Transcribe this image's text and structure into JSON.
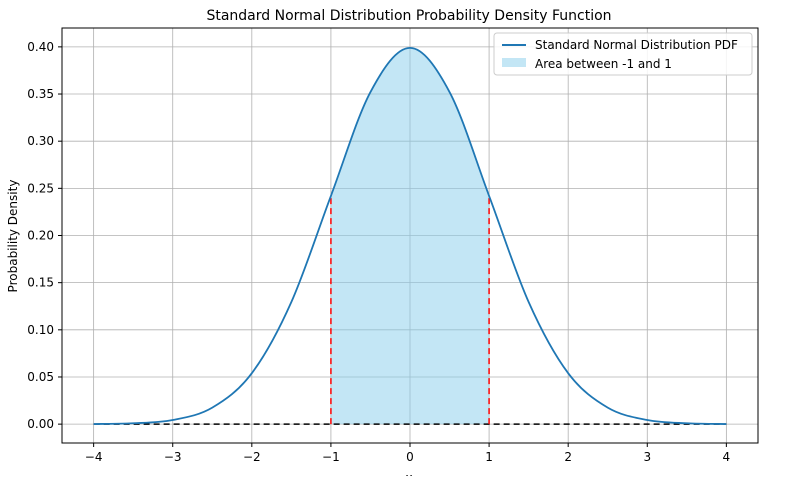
{
  "chart_data": {
    "type": "line",
    "title": "Standard Normal Distribution Probability Density Function",
    "xlabel": "x",
    "ylabel": "Probability Density",
    "xlim": [
      -4.4,
      4.4
    ],
    "ylim": [
      -0.02,
      0.42
    ],
    "x_ticks": [
      -4,
      -3,
      -2,
      -1,
      0,
      1,
      2,
      3,
      4
    ],
    "x_tick_labels": [
      "−4",
      "−3",
      "−2",
      "−1",
      "0",
      "1",
      "2",
      "3",
      "4"
    ],
    "y_ticks": [
      0.0,
      0.05,
      0.1,
      0.15,
      0.2,
      0.25,
      0.3,
      0.35,
      0.4
    ],
    "y_tick_labels": [
      "0.00",
      "0.05",
      "0.10",
      "0.15",
      "0.20",
      "0.25",
      "0.30",
      "0.35",
      "0.40"
    ],
    "grid": true,
    "legend_position": "top-right",
    "series": [
      {
        "name": "Standard Normal Distribution PDF",
        "color": "#1f77b4",
        "x": [
          -4.0,
          -3.5,
          -3.0,
          -2.5,
          -2.0,
          -1.5,
          -1.0,
          -0.5,
          0.0,
          0.5,
          1.0,
          1.5,
          2.0,
          2.5,
          3.0,
          3.5,
          4.0
        ],
        "y": [
          0.0001,
          0.0009,
          0.0044,
          0.0175,
          0.054,
          0.1295,
          0.242,
          0.3521,
          0.3989,
          0.3521,
          0.242,
          0.1295,
          0.054,
          0.0175,
          0.0044,
          0.0009,
          0.0001
        ]
      }
    ],
    "shaded_area": {
      "name": "Area between -1 and 1",
      "x_from": -1,
      "x_to": 1,
      "color": "#87ceeb"
    },
    "vertical_lines": [
      {
        "x": -1,
        "y_max": 0.242,
        "color": "#ff0000",
        "style": "dashed"
      },
      {
        "x": 1,
        "y_max": 0.242,
        "color": "#ff0000",
        "style": "dashed"
      }
    ],
    "baseline": {
      "from": -4,
      "to": 4,
      "y": 0,
      "color": "#000000",
      "style": "dashed"
    }
  }
}
